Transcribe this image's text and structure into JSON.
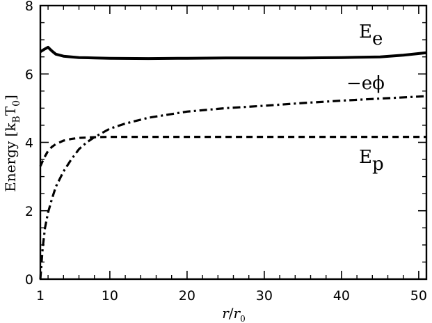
{
  "chart_data": {
    "type": "line",
    "title": "",
    "xlabel": "r/r0",
    "ylabel": "Energy [kBT0]",
    "xlim": [
      1,
      51
    ],
    "ylim": [
      0,
      8
    ],
    "xticks": [
      1,
      10,
      20,
      30,
      40,
      50
    ],
    "yticks": [
      0,
      2,
      4,
      6,
      8
    ],
    "grid": false,
    "legend": "inline labels",
    "series": [
      {
        "name": "Ee",
        "style": "solid",
        "x": [
          1,
          1.5,
          2,
          2.5,
          3,
          4,
          5,
          6,
          8,
          10,
          15,
          20,
          25,
          30,
          35,
          40,
          45,
          48,
          51
        ],
        "y": [
          6.65,
          6.72,
          6.78,
          6.67,
          6.58,
          6.52,
          6.5,
          6.48,
          6.47,
          6.46,
          6.45,
          6.46,
          6.47,
          6.47,
          6.47,
          6.48,
          6.5,
          6.55,
          6.62
        ]
      },
      {
        "name": "−eϕ",
        "style": "dash-dot",
        "x": [
          1,
          1.3,
          1.6,
          2,
          2.5,
          3,
          4,
          5,
          6,
          7,
          8,
          10,
          12,
          15,
          20,
          25,
          30,
          35,
          40,
          45,
          51
        ],
        "y": [
          0.0,
          0.9,
          1.5,
          1.95,
          2.35,
          2.7,
          3.15,
          3.5,
          3.8,
          4.0,
          4.15,
          4.4,
          4.55,
          4.72,
          4.9,
          5.0,
          5.07,
          5.15,
          5.22,
          5.28,
          5.35
        ]
      },
      {
        "name": "Ep",
        "style": "dashed",
        "x": [
          1,
          1.5,
          2,
          2.5,
          3,
          4,
          5,
          6,
          8,
          10,
          20,
          30,
          40,
          51
        ],
        "y": [
          3.3,
          3.55,
          3.75,
          3.87,
          3.95,
          4.05,
          4.1,
          4.13,
          4.15,
          4.16,
          4.16,
          4.16,
          4.16,
          4.16
        ]
      }
    ],
    "labels": {
      "Ee": {
        "main": "E",
        "sub": "e"
      },
      "phi": {
        "main": "−eϕ"
      },
      "Ep": {
        "main": "E",
        "sub": "p"
      },
      "ylabel": {
        "pre": "Energy [k",
        "sub1": "B",
        "mid": "T",
        "sub2": "0",
        "post": "]"
      },
      "xlabel": {
        "num": "r",
        "slash": "/",
        "den": "r",
        "den_sub": "0"
      }
    }
  }
}
